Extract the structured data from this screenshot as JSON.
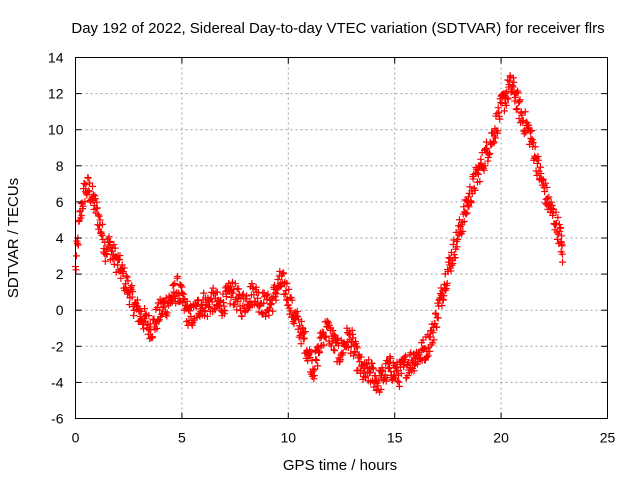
{
  "chart_data": {
    "type": "scatter",
    "title": "Day 192 of 2022, Sidereal Day-to-day VTEC variation (SDTVAR) for receiver flrs",
    "xlabel": "GPS time / hours",
    "ylabel": "SDTVAR / TECUs",
    "xlim": [
      0,
      25
    ],
    "ylim": [
      -6,
      14
    ],
    "xticks": [
      "0",
      "5",
      "10",
      "15",
      "20",
      "25"
    ],
    "yticks": [
      "-6",
      "-4",
      "-2",
      "0",
      "2",
      "4",
      "6",
      "8",
      "10",
      "12",
      "14"
    ],
    "grid": true,
    "marker": "plus",
    "color": "#ff0000",
    "series": [
      {
        "name": "SDTVAR",
        "trace_points": [
          [
            0.0,
            2.2
          ],
          [
            0.2,
            5.0
          ],
          [
            0.4,
            6.5
          ],
          [
            0.6,
            6.8
          ],
          [
            0.8,
            6.2
          ],
          [
            1.0,
            5.5
          ],
          [
            1.2,
            4.5
          ],
          [
            1.4,
            3.4
          ],
          [
            1.6,
            3.6
          ],
          [
            1.8,
            3.0
          ],
          [
            2.0,
            2.6
          ],
          [
            2.2,
            2.0
          ],
          [
            2.4,
            1.4
          ],
          [
            2.6,
            0.8
          ],
          [
            2.8,
            0.2
          ],
          [
            3.0,
            -0.2
          ],
          [
            3.2,
            -0.5
          ],
          [
            3.4,
            -0.8
          ],
          [
            3.6,
            -1.0
          ],
          [
            3.8,
            -0.5
          ],
          [
            4.0,
            0.0
          ],
          [
            4.2,
            0.2
          ],
          [
            4.4,
            0.5
          ],
          [
            4.6,
            0.8
          ],
          [
            4.8,
            1.2
          ],
          [
            5.0,
            0.6
          ],
          [
            5.2,
            0.0
          ],
          [
            5.4,
            -0.4
          ],
          [
            5.6,
            -0.2
          ],
          [
            5.8,
            0.2
          ],
          [
            6.0,
            0.4
          ],
          [
            6.2,
            0.2
          ],
          [
            6.4,
            0.6
          ],
          [
            6.6,
            0.4
          ],
          [
            6.8,
            0.2
          ],
          [
            7.0,
            0.5
          ],
          [
            7.2,
            0.8
          ],
          [
            7.4,
            1.0
          ],
          [
            7.6,
            0.6
          ],
          [
            7.8,
            0.3
          ],
          [
            8.0,
            0.5
          ],
          [
            8.2,
            0.8
          ],
          [
            8.4,
            1.0
          ],
          [
            8.6,
            0.6
          ],
          [
            8.8,
            0.4
          ],
          [
            9.0,
            0.2
          ],
          [
            9.2,
            0.4
          ],
          [
            9.4,
            1.0
          ],
          [
            9.6,
            1.5
          ],
          [
            9.8,
            1.4
          ],
          [
            10.0,
            0.8
          ],
          [
            10.2,
            -0.2
          ],
          [
            10.4,
            -0.6
          ],
          [
            10.6,
            -1.2
          ],
          [
            10.8,
            -1.8
          ],
          [
            11.0,
            -2.6
          ],
          [
            11.2,
            -3.2
          ],
          [
            11.4,
            -2.4
          ],
          [
            11.6,
            -1.4
          ],
          [
            11.8,
            -1.0
          ],
          [
            12.0,
            -1.4
          ],
          [
            12.2,
            -2.0
          ],
          [
            12.4,
            -2.4
          ],
          [
            12.6,
            -2.0
          ],
          [
            12.8,
            -1.5
          ],
          [
            13.0,
            -1.8
          ],
          [
            13.2,
            -2.6
          ],
          [
            13.4,
            -3.2
          ],
          [
            13.6,
            -3.6
          ],
          [
            13.8,
            -3.4
          ],
          [
            14.0,
            -3.6
          ],
          [
            14.2,
            -4.0
          ],
          [
            14.4,
            -3.8
          ],
          [
            14.6,
            -3.4
          ],
          [
            14.8,
            -3.2
          ],
          [
            15.0,
            -3.4
          ],
          [
            15.2,
            -3.6
          ],
          [
            15.4,
            -3.2
          ],
          [
            15.6,
            -3.0
          ],
          [
            15.8,
            -2.8
          ],
          [
            16.0,
            -2.6
          ],
          [
            16.2,
            -2.4
          ],
          [
            16.4,
            -2.2
          ],
          [
            16.6,
            -1.8
          ],
          [
            16.8,
            -1.2
          ],
          [
            17.0,
            -0.2
          ],
          [
            17.2,
            0.8
          ],
          [
            17.4,
            1.8
          ],
          [
            17.6,
            2.6
          ],
          [
            17.8,
            3.4
          ],
          [
            18.0,
            4.2
          ],
          [
            18.2,
            5.0
          ],
          [
            18.4,
            5.8
          ],
          [
            18.6,
            6.6
          ],
          [
            18.8,
            7.2
          ],
          [
            19.0,
            7.8
          ],
          [
            19.2,
            8.4
          ],
          [
            19.4,
            9.0
          ],
          [
            19.6,
            9.6
          ],
          [
            19.8,
            10.4
          ],
          [
            20.0,
            11.2
          ],
          [
            20.2,
            11.8
          ],
          [
            20.4,
            12.4
          ],
          [
            20.6,
            12.2
          ],
          [
            20.8,
            11.4
          ],
          [
            21.0,
            10.6
          ],
          [
            21.2,
            10.2
          ],
          [
            21.4,
            9.6
          ],
          [
            21.6,
            8.6
          ],
          [
            21.8,
            7.6
          ],
          [
            22.0,
            6.8
          ],
          [
            22.2,
            6.0
          ],
          [
            22.4,
            5.4
          ],
          [
            22.6,
            4.8
          ],
          [
            22.8,
            4.0
          ],
          [
            22.9,
            3.0
          ]
        ],
        "spread": 1.4,
        "lines_per_point": 9
      }
    ]
  }
}
